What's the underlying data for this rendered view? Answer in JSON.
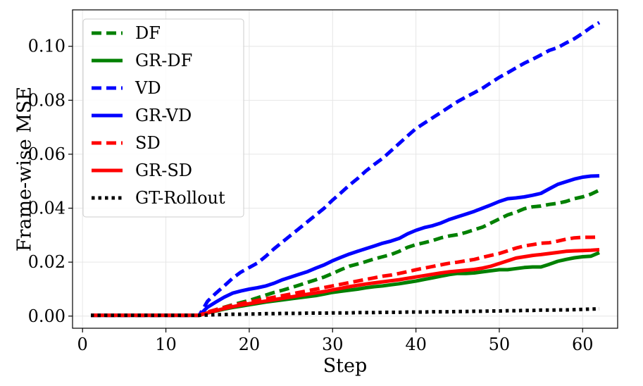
{
  "chart_data": {
    "type": "line",
    "title": "",
    "xlabel": "Step",
    "ylabel": "Frame-wise MSE",
    "xlim": [
      -1.2,
      64.2
    ],
    "ylim": [
      -0.0045,
      0.1135
    ],
    "xticks": [
      0,
      10,
      20,
      30,
      40,
      50,
      60
    ],
    "yticks": [
      0.0,
      0.02,
      0.04,
      0.06,
      0.08,
      0.1
    ],
    "xtick_labels": [
      "0",
      "10",
      "20",
      "30",
      "40",
      "50",
      "60"
    ],
    "ytick_labels": [
      "0.00",
      "0.02",
      "0.04",
      "0.06",
      "0.08",
      "0.10"
    ],
    "grid": true,
    "legend_position": "top-left",
    "x": [
      1,
      2,
      3,
      4,
      5,
      6,
      7,
      8,
      9,
      10,
      11,
      12,
      13,
      14,
      15,
      16,
      17,
      18,
      19,
      20,
      21,
      22,
      23,
      24,
      25,
      26,
      27,
      28,
      29,
      30,
      31,
      32,
      33,
      34,
      35,
      36,
      37,
      38,
      39,
      40,
      41,
      42,
      43,
      44,
      45,
      46,
      47,
      48,
      49,
      50,
      51,
      52,
      53,
      54,
      55,
      56,
      57,
      58,
      59,
      60,
      61,
      62
    ],
    "series": [
      {
        "name": "DF",
        "color": "#008000",
        "dash": "dashed",
        "values": [
          0.0003,
          0.0003,
          0.0003,
          0.0003,
          0.0003,
          0.0003,
          0.0003,
          0.0003,
          0.0003,
          0.0003,
          0.0003,
          0.0003,
          0.0003,
          0.0003,
          0.0015,
          0.0024,
          0.0033,
          0.0042,
          0.005,
          0.0058,
          0.0068,
          0.0078,
          0.0088,
          0.0096,
          0.0105,
          0.0115,
          0.0125,
          0.0135,
          0.0145,
          0.0158,
          0.0172,
          0.0185,
          0.0193,
          0.0202,
          0.0212,
          0.022,
          0.0228,
          0.024,
          0.0255,
          0.0265,
          0.0272,
          0.028,
          0.029,
          0.0297,
          0.0302,
          0.031,
          0.032,
          0.033,
          0.0345,
          0.036,
          0.0375,
          0.0385,
          0.0398,
          0.0405,
          0.0408,
          0.0414,
          0.0418,
          0.0425,
          0.0435,
          0.0442,
          0.0452,
          0.0467
        ]
      },
      {
        "name": "GR-DF",
        "color": "#008000",
        "dash": "solid",
        "values": [
          0.0003,
          0.0003,
          0.0003,
          0.0003,
          0.0003,
          0.0003,
          0.0003,
          0.0003,
          0.0003,
          0.0003,
          0.0003,
          0.0003,
          0.0003,
          0.0003,
          0.0012,
          0.0019,
          0.0026,
          0.0032,
          0.0037,
          0.0042,
          0.0047,
          0.0052,
          0.0056,
          0.006,
          0.0064,
          0.0068,
          0.0072,
          0.0076,
          0.0082,
          0.0088,
          0.0092,
          0.0096,
          0.01,
          0.0105,
          0.0109,
          0.0112,
          0.0116,
          0.012,
          0.0125,
          0.013,
          0.0136,
          0.0142,
          0.0148,
          0.0154,
          0.0158,
          0.0158,
          0.016,
          0.0164,
          0.0168,
          0.0172,
          0.0172,
          0.0176,
          0.018,
          0.0182,
          0.0182,
          0.0192,
          0.0203,
          0.021,
          0.0216,
          0.022,
          0.0222,
          0.0235
        ]
      },
      {
        "name": "VD",
        "color": "#0000ff",
        "dash": "dashed",
        "values": [
          0.0003,
          0.0003,
          0.0003,
          0.0003,
          0.0003,
          0.0003,
          0.0003,
          0.0003,
          0.0003,
          0.0003,
          0.0003,
          0.0003,
          0.0003,
          0.0003,
          0.0055,
          0.0085,
          0.0112,
          0.014,
          0.0163,
          0.018,
          0.0197,
          0.0222,
          0.025,
          0.0275,
          0.03,
          0.0325,
          0.035,
          0.0375,
          0.04,
          0.043,
          0.0457,
          0.0485,
          0.051,
          0.0538,
          0.0562,
          0.0585,
          0.0612,
          0.064,
          0.0668,
          0.0695,
          0.0715,
          0.0735,
          0.0755,
          0.0775,
          0.0795,
          0.0812,
          0.0828,
          0.0845,
          0.0865,
          0.0885,
          0.0902,
          0.092,
          0.0937,
          0.0952,
          0.0968,
          0.0985,
          0.0995,
          0.1012,
          0.1028,
          0.1048,
          0.107,
          0.1088
        ]
      },
      {
        "name": "GR-VD",
        "color": "#0000ff",
        "dash": "solid",
        "values": [
          0.0003,
          0.0003,
          0.0003,
          0.0003,
          0.0003,
          0.0003,
          0.0003,
          0.0003,
          0.0003,
          0.0003,
          0.0003,
          0.0003,
          0.0003,
          0.0003,
          0.0033,
          0.0052,
          0.007,
          0.0085,
          0.0093,
          0.01,
          0.0105,
          0.0112,
          0.0122,
          0.0135,
          0.0145,
          0.0155,
          0.0165,
          0.0178,
          0.019,
          0.0205,
          0.0218,
          0.023,
          0.024,
          0.025,
          0.026,
          0.027,
          0.0278,
          0.0288,
          0.0305,
          0.0318,
          0.0328,
          0.0335,
          0.0345,
          0.0358,
          0.0368,
          0.0378,
          0.0388,
          0.04,
          0.0412,
          0.0425,
          0.0435,
          0.0438,
          0.0442,
          0.0448,
          0.0455,
          0.0472,
          0.0488,
          0.0498,
          0.0508,
          0.0515,
          0.0519,
          0.052
        ]
      },
      {
        "name": "SD",
        "color": "#ff0000",
        "dash": "dashed",
        "values": [
          0.0003,
          0.0003,
          0.0003,
          0.0003,
          0.0003,
          0.0003,
          0.0003,
          0.0003,
          0.0003,
          0.0003,
          0.0003,
          0.0003,
          0.0003,
          0.0003,
          0.0015,
          0.0024,
          0.0032,
          0.004,
          0.0046,
          0.0052,
          0.0058,
          0.0064,
          0.007,
          0.0076,
          0.0082,
          0.0088,
          0.0094,
          0.01,
          0.0106,
          0.0112,
          0.0118,
          0.0124,
          0.013,
          0.0136,
          0.0142,
          0.0148,
          0.0152,
          0.0158,
          0.0165,
          0.0172,
          0.0178,
          0.0184,
          0.019,
          0.0196,
          0.02,
          0.0205,
          0.021,
          0.0218,
          0.0225,
          0.0232,
          0.0242,
          0.0252,
          0.026,
          0.0265,
          0.027,
          0.0272,
          0.0278,
          0.0285,
          0.029,
          0.0292,
          0.0292,
          0.0293
        ]
      },
      {
        "name": "GR-SD",
        "color": "#ff0000",
        "dash": "solid",
        "values": [
          0.0003,
          0.0003,
          0.0003,
          0.0003,
          0.0003,
          0.0003,
          0.0003,
          0.0003,
          0.0003,
          0.0003,
          0.0003,
          0.0003,
          0.0003,
          0.0003,
          0.0012,
          0.002,
          0.0028,
          0.0035,
          0.0041,
          0.0046,
          0.0051,
          0.0056,
          0.0061,
          0.0066,
          0.0071,
          0.0076,
          0.0081,
          0.0086,
          0.0091,
          0.0097,
          0.0103,
          0.0109,
          0.0114,
          0.0119,
          0.0123,
          0.0127,
          0.0131,
          0.0135,
          0.014,
          0.0145,
          0.015,
          0.0155,
          0.016,
          0.0164,
          0.0167,
          0.017,
          0.0173,
          0.0178,
          0.0185,
          0.0195,
          0.0205,
          0.0215,
          0.022,
          0.0225,
          0.0228,
          0.0232,
          0.0236,
          0.024,
          0.0242,
          0.0243,
          0.0244,
          0.0246
        ]
      },
      {
        "name": "GT-Rollout",
        "color": "#000000",
        "dash": "dotted",
        "values": [
          0.0003,
          0.0003,
          0.0003,
          0.0003,
          0.0003,
          0.0003,
          0.0003,
          0.0003,
          0.0003,
          0.0003,
          0.0003,
          0.0003,
          0.0003,
          0.0003,
          0.0004,
          0.0005,
          0.0006,
          0.0007,
          0.0007,
          0.0008,
          0.0008,
          0.0009,
          0.0009,
          0.001,
          0.001,
          0.001,
          0.0011,
          0.0011,
          0.0011,
          0.0012,
          0.0012,
          0.0012,
          0.0013,
          0.0013,
          0.0013,
          0.0014,
          0.0014,
          0.0014,
          0.0015,
          0.0015,
          0.0015,
          0.0016,
          0.0016,
          0.0016,
          0.0017,
          0.0017,
          0.0018,
          0.0018,
          0.0019,
          0.0019,
          0.002,
          0.002,
          0.0021,
          0.0021,
          0.0022,
          0.0022,
          0.0023,
          0.0023,
          0.0024,
          0.0025,
          0.0026,
          0.0027
        ]
      }
    ]
  }
}
